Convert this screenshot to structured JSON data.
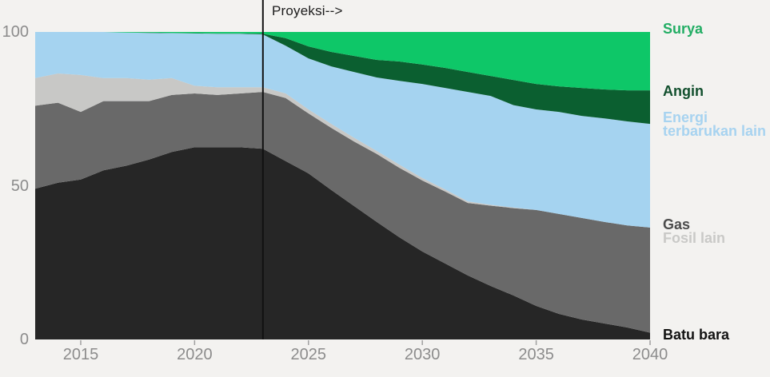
{
  "chart_data": {
    "type": "area",
    "stacked": true,
    "title": "",
    "xlabel": "",
    "ylabel": "",
    "xlim": [
      2013,
      2040
    ],
    "ylim": [
      0,
      100
    ],
    "grid": false,
    "legend_position": "right",
    "xticks": [
      2015,
      2020,
      2025,
      2030,
      2035,
      2040
    ],
    "yticks": [
      0,
      50,
      100
    ],
    "annotation": {
      "label": "Proyeksi-->",
      "x": 2023
    },
    "x": [
      2013,
      2014,
      2015,
      2016,
      2017,
      2018,
      2019,
      2020,
      2021,
      2022,
      2023,
      2024,
      2025,
      2026,
      2027,
      2028,
      2029,
      2030,
      2031,
      2032,
      2033,
      2034,
      2035,
      2036,
      2037,
      2038,
      2039,
      2040
    ],
    "series": [
      {
        "id": "batu-bara",
        "name": "Batu bara",
        "color": "#262626",
        "values": [
          49,
          51,
          52,
          55,
          56.5,
          58.5,
          61,
          62.5,
          62.5,
          62.5,
          62,
          58,
          54,
          48.6,
          43.4,
          38.2,
          33.2,
          28.6,
          24.7,
          20.8,
          17.4,
          14.3,
          10.9,
          8.3,
          6.5,
          5.2,
          3.9,
          2.2
        ]
      },
      {
        "id": "gas",
        "name": "Gas",
        "color": "#696969",
        "values": [
          27,
          26,
          22,
          22.5,
          21,
          19,
          18.5,
          17.5,
          17,
          17.5,
          18.5,
          20.5,
          19.5,
          20.2,
          21,
          22.1,
          22.6,
          23.1,
          23.4,
          23.6,
          26.1,
          28.4,
          31.2,
          32.5,
          33,
          33,
          33.2,
          34.2
        ]
      },
      {
        "id": "fosil-lain",
        "name": "Fosil lain",
        "color": "#c8c8c6",
        "values": [
          9,
          9.5,
          12,
          7.5,
          7.5,
          7,
          5.5,
          2.5,
          2.5,
          2,
          1.5,
          1.5,
          1.3,
          1.3,
          1.2,
          1,
          1,
          0.8,
          0.7,
          0.5,
          0.3,
          0.2,
          0,
          0,
          0,
          0,
          0,
          0
        ]
      },
      {
        "id": "energi-terbarukan-lain",
        "name": "Energi terbarukan lain",
        "color": "#a5d3f0",
        "values": [
          15,
          13.5,
          14,
          15,
          14.8,
          15.2,
          14.6,
          17,
          17.4,
          17.4,
          17.2,
          15.5,
          16.6,
          18.7,
          21.4,
          23.9,
          27.3,
          30.6,
          33,
          35.6,
          35.4,
          33.3,
          32.7,
          33.2,
          33.2,
          33.7,
          33.8,
          33.7
        ]
      },
      {
        "id": "angin",
        "name": "Angin",
        "color": "#0b5f30",
        "values": [
          0,
          0,
          0,
          0,
          0,
          0.1,
          0.1,
          0.1,
          0.1,
          0.1,
          0.2,
          2.5,
          3.9,
          4.7,
          5.2,
          5.7,
          6.3,
          6.3,
          6.5,
          6.5,
          6.5,
          8.2,
          8.3,
          8.3,
          9.1,
          9.4,
          10.1,
          10.9
        ]
      },
      {
        "id": "surya",
        "name": "Surya",
        "color": "#0ec768",
        "values": [
          0,
          0,
          0,
          0,
          0.2,
          0.2,
          0.3,
          0.4,
          0.5,
          0.5,
          0.6,
          2,
          4.7,
          6.5,
          7.8,
          9.1,
          9.6,
          10.6,
          11.7,
          13,
          14.3,
          15.6,
          16.9,
          17.7,
          18.2,
          18.7,
          19,
          19
        ]
      }
    ]
  },
  "legend": {
    "surya": {
      "label": "Surya",
      "color": "#21ad63"
    },
    "angin": {
      "label": "Angin",
      "color": "#114f2d"
    },
    "energi_terbarukan_lain": {
      "label": "Energi terbarukan lain",
      "color": "#a7d3f0"
    },
    "gas": {
      "label": "Gas",
      "color": "#4c4c4c"
    },
    "fosil_lain": {
      "label": "Fosil lain",
      "color": "#c9c9c7"
    },
    "batu_bara": {
      "label": "Batu bara",
      "color": "#121212"
    }
  },
  "colors": {
    "background": "#f3f2f0",
    "axis_text": "#8c8c8c",
    "tick_mark": "#a0a0a0",
    "projection_line": "#111111"
  }
}
